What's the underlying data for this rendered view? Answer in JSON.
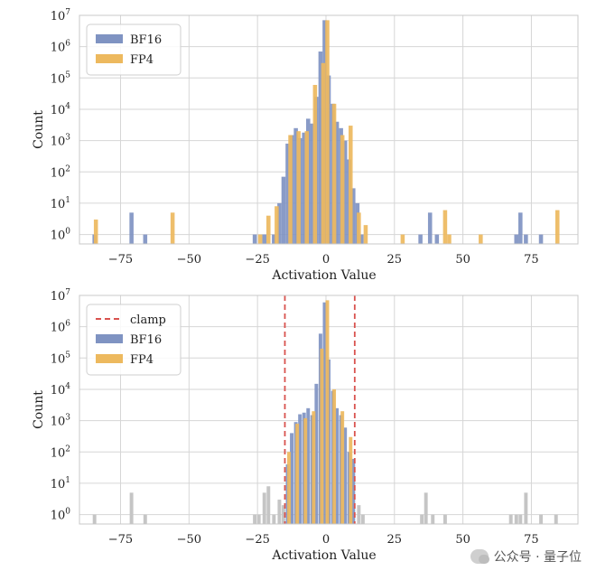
{
  "chart_data": [
    {
      "type": "bar",
      "subtype": "histogram",
      "x_label": "Activation Value",
      "y_label": "Count",
      "y_scale": "log",
      "ylim": [
        0.5,
        10000000
      ],
      "xlim": [
        -90,
        92
      ],
      "x_ticks": [
        -75,
        -50,
        -25,
        0,
        25,
        50,
        75
      ],
      "x_tick_labels": [
        "−75",
        "−50",
        "−25",
        "0",
        "25",
        "50",
        "75"
      ],
      "y_ticks": [
        1,
        10,
        100,
        1000,
        10000,
        100000,
        1000000,
        10000000
      ],
      "y_tick_labels": [
        [
          "10",
          "0"
        ],
        [
          "10",
          "1"
        ],
        [
          "10",
          "2"
        ],
        [
          "10",
          "3"
        ],
        [
          "10",
          "4"
        ],
        [
          "10",
          "5"
        ],
        [
          "10",
          "6"
        ],
        [
          "10",
          "7"
        ]
      ],
      "grid": true,
      "legend_position": "top-left",
      "legend": [
        {
          "kind": "patch",
          "label": "BF16",
          "color": "#7f93c2"
        },
        {
          "kind": "patch",
          "label": "FP4",
          "color": "#edb95e"
        }
      ],
      "bin_width": 1.5,
      "series": [
        {
          "name": "BF16",
          "color": "#7f93c2",
          "x": [
            -84.5,
            -71,
            -66,
            -26,
            -22.5,
            -19,
            -17,
            -15.5,
            -14,
            -12.5,
            -11,
            -9.5,
            -8,
            -6.5,
            -5,
            -3.5,
            -2,
            -0.5,
            1,
            2.5,
            4,
            5.5,
            7,
            8.5,
            10,
            11.5,
            13,
            34.5,
            38,
            40.5,
            69.5,
            71,
            73,
            78.5
          ],
          "y": [
            1,
            5,
            1,
            1,
            1,
            1,
            10,
            70,
            800,
            1500,
            2500,
            1200,
            1800,
            5000,
            3500,
            25000,
            700000,
            7000000,
            120000,
            15000,
            4000,
            2500,
            1000,
            250,
            30,
            10,
            1,
            1,
            5,
            1,
            1,
            5,
            1,
            1
          ]
        },
        {
          "name": "FP4",
          "color": "#edb95e",
          "x": [
            -84,
            -56,
            -24,
            -21,
            -18,
            -13,
            -10,
            -7,
            -4,
            -1,
            0.5,
            3,
            6,
            9,
            12,
            14.5,
            28,
            43.5,
            45,
            56.5,
            84.5
          ],
          "y": [
            3,
            5,
            1,
            4,
            8,
            1500,
            2000,
            2000,
            60000,
            300000,
            7000000,
            15000,
            1500,
            3000,
            5,
            2,
            1,
            6,
            1,
            1,
            6
          ]
        }
      ]
    },
    {
      "type": "bar",
      "subtype": "histogram",
      "x_label": "Activation Value",
      "y_label": "Count",
      "y_scale": "log",
      "ylim": [
        0.5,
        10000000
      ],
      "xlim": [
        -90,
        92
      ],
      "x_ticks": [
        -75,
        -50,
        -25,
        0,
        25,
        50,
        75
      ],
      "x_tick_labels": [
        "−75",
        "−50",
        "−25",
        "0",
        "25",
        "50",
        "75"
      ],
      "y_ticks": [
        1,
        10,
        100,
        1000,
        10000,
        100000,
        1000000,
        10000000
      ],
      "y_tick_labels": [
        [
          "10",
          "0"
        ],
        [
          "10",
          "1"
        ],
        [
          "10",
          "2"
        ],
        [
          "10",
          "3"
        ],
        [
          "10",
          "4"
        ],
        [
          "10",
          "5"
        ],
        [
          "10",
          "6"
        ],
        [
          "10",
          "7"
        ]
      ],
      "grid": true,
      "legend_position": "top-left",
      "legend": [
        {
          "kind": "line",
          "label": "clamp",
          "color": "#d9534f"
        },
        {
          "kind": "patch",
          "label": "BF16",
          "color": "#7f93c2"
        },
        {
          "kind": "patch",
          "label": "FP4",
          "color": "#edb95e"
        }
      ],
      "bin_width": 1.3,
      "clamp_x": [
        -15,
        10.5
      ],
      "clamped_color": "#c5c5c5",
      "series": [
        {
          "name": "BF16",
          "color": "#7f93c2",
          "x": [
            -14,
            -12.5,
            -11,
            -9.5,
            -8,
            -6.5,
            -5,
            -3.5,
            -2,
            -0.5,
            1,
            2.5,
            4,
            5.5,
            7,
            8.5,
            10
          ],
          "y": [
            40,
            400,
            900,
            1600,
            1800,
            2500,
            1500,
            15000,
            600000,
            6000000,
            90000,
            9000,
            2500,
            1500,
            600,
            100,
            60
          ]
        },
        {
          "name": "FP4",
          "color": "#edb95e",
          "x": [
            -13.5,
            -10.5,
            -7.5,
            -4.5,
            -1.5,
            0.5,
            3,
            6,
            9
          ],
          "y": [
            100,
            800,
            1200,
            2000,
            200000,
            7000000,
            10000,
            2000,
            300
          ]
        },
        {
          "name": "clamped",
          "color": "#c5c5c5",
          "x": [
            -84.5,
            -71,
            -66,
            -26,
            -24.5,
            -22.5,
            -21,
            -19,
            -17,
            -15.5,
            12,
            13.5,
            35,
            36.5,
            39,
            43.5,
            67.5,
            69.5,
            71,
            73,
            78.5,
            84
          ],
          "y": [
            1,
            5,
            1,
            1,
            1,
            5,
            8,
            1,
            3,
            2,
            2,
            1,
            1,
            5,
            1,
            1,
            1,
            1,
            1,
            5,
            1,
            1
          ]
        }
      ]
    }
  ],
  "watermark": {
    "text": "公众号 · 量子位"
  }
}
